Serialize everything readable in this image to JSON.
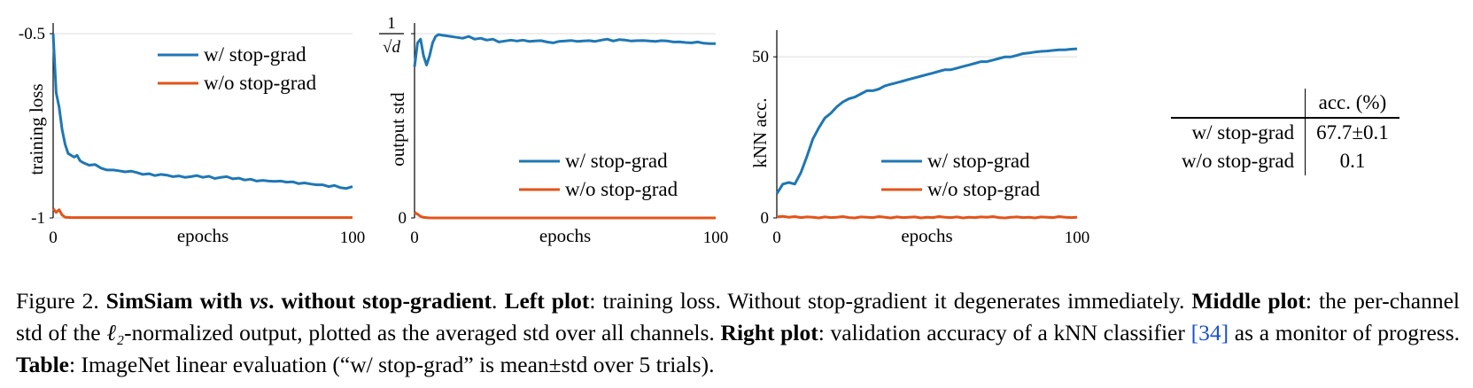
{
  "chart_data": [
    {
      "type": "line",
      "id": "left",
      "title": "",
      "xlabel": "epochs",
      "ylabel": "training loss",
      "xlim": [
        0,
        100
      ],
      "ylim": [
        -1,
        -0.5
      ],
      "xticks": [
        0,
        100
      ],
      "yticks": [
        -1,
        -0.5
      ],
      "ytick_labels": [
        "-1",
        "-0.5"
      ],
      "grid": true,
      "legend_position": "top-right",
      "series": [
        {
          "name": "w/ stop-grad",
          "color": "#1f77b4",
          "x": [
            0,
            1,
            2,
            3,
            4,
            5,
            6,
            7,
            8,
            9,
            10,
            12,
            14,
            16,
            18,
            20,
            22,
            24,
            26,
            28,
            30,
            32,
            34,
            36,
            38,
            40,
            42,
            44,
            46,
            48,
            50,
            52,
            54,
            56,
            58,
            60,
            62,
            64,
            66,
            68,
            70,
            72,
            74,
            76,
            78,
            80,
            82,
            84,
            86,
            88,
            90,
            92,
            94,
            96,
            98,
            100
          ],
          "values": [
            -0.5,
            -0.66,
            -0.7,
            -0.76,
            -0.8,
            -0.825,
            -0.83,
            -0.835,
            -0.83,
            -0.845,
            -0.85,
            -0.857,
            -0.855,
            -0.865,
            -0.87,
            -0.87,
            -0.872,
            -0.875,
            -0.873,
            -0.877,
            -0.882,
            -0.88,
            -0.885,
            -0.882,
            -0.884,
            -0.888,
            -0.886,
            -0.89,
            -0.888,
            -0.885,
            -0.89,
            -0.887,
            -0.893,
            -0.89,
            -0.888,
            -0.894,
            -0.892,
            -0.897,
            -0.895,
            -0.9,
            -0.898,
            -0.9,
            -0.901,
            -0.9,
            -0.903,
            -0.902,
            -0.907,
            -0.905,
            -0.908,
            -0.91,
            -0.91,
            -0.915,
            -0.912,
            -0.918,
            -0.92,
            -0.915
          ]
        },
        {
          "name": "w/o stop-grad",
          "color": "#e2541b",
          "x": [
            0,
            1,
            2,
            3,
            4,
            6,
            10,
            20,
            40,
            60,
            80,
            100
          ],
          "values": [
            -0.975,
            -0.985,
            -0.978,
            -0.992,
            -0.998,
            -0.999,
            -0.999,
            -0.999,
            -0.999,
            -0.999,
            -0.999,
            -0.999
          ]
        }
      ]
    },
    {
      "type": "line",
      "id": "middle",
      "title": "",
      "xlabel": "epochs",
      "ylabel": "output std",
      "xlim": [
        0,
        100
      ],
      "ylim": [
        0,
        1
      ],
      "xticks": [
        0,
        100
      ],
      "yticks": [
        0,
        1
      ],
      "ytick_labels": [
        "0",
        "1/√d"
      ],
      "grid": true,
      "legend_position": "center-right",
      "series": [
        {
          "name": "w/ stop-grad",
          "color": "#1f77b4",
          "x": [
            0,
            1,
            2,
            3,
            4,
            5,
            6,
            7,
            8,
            9,
            10,
            12,
            14,
            16,
            18,
            20,
            22,
            24,
            26,
            28,
            30,
            32,
            34,
            36,
            38,
            40,
            42,
            44,
            46,
            48,
            50,
            52,
            54,
            56,
            58,
            60,
            62,
            64,
            66,
            68,
            70,
            72,
            74,
            76,
            78,
            80,
            82,
            84,
            86,
            88,
            90,
            92,
            94,
            96,
            98,
            100
          ],
          "values": [
            0.82,
            0.95,
            0.97,
            0.88,
            0.83,
            0.88,
            0.95,
            0.985,
            0.995,
            0.992,
            0.99,
            0.985,
            0.98,
            0.975,
            0.985,
            0.97,
            0.975,
            0.965,
            0.97,
            0.955,
            0.96,
            0.965,
            0.96,
            0.965,
            0.958,
            0.96,
            0.962,
            0.955,
            0.95,
            0.958,
            0.96,
            0.963,
            0.958,
            0.96,
            0.962,
            0.958,
            0.965,
            0.97,
            0.96,
            0.968,
            0.965,
            0.96,
            0.962,
            0.963,
            0.96,
            0.958,
            0.962,
            0.96,
            0.955,
            0.956,
            0.952,
            0.95,
            0.955,
            0.948,
            0.946,
            0.946
          ]
        },
        {
          "name": "w/o stop-grad",
          "color": "#e2541b",
          "x": [
            0,
            1,
            2,
            3,
            5,
            10,
            20,
            40,
            60,
            80,
            100
          ],
          "values": [
            0.03,
            0.02,
            0.008,
            0.003,
            0.0,
            0.0,
            0.0,
            0.0,
            0.0,
            0.0,
            0.0
          ]
        }
      ]
    },
    {
      "type": "line",
      "id": "right",
      "title": "",
      "xlabel": "epochs",
      "ylabel": "kNN acc.",
      "xlim": [
        0,
        100
      ],
      "ylim": [
        0,
        55
      ],
      "xticks": [
        0,
        100
      ],
      "yticks": [
        0,
        50
      ],
      "ytick_labels": [
        "0",
        "50"
      ],
      "grid": true,
      "legend_position": "center-right",
      "series": [
        {
          "name": "w/ stop-grad",
          "color": "#1f77b4",
          "x": [
            0,
            2,
            4,
            6,
            8,
            10,
            12,
            14,
            16,
            18,
            20,
            22,
            24,
            26,
            28,
            30,
            32,
            34,
            36,
            38,
            40,
            42,
            44,
            46,
            48,
            50,
            52,
            54,
            56,
            58,
            60,
            62,
            64,
            66,
            68,
            70,
            72,
            74,
            76,
            78,
            80,
            82,
            84,
            86,
            88,
            90,
            92,
            94,
            96,
            98,
            100
          ],
          "values": [
            7.5,
            10.5,
            11,
            10.5,
            14,
            19,
            24.5,
            28,
            31,
            32.5,
            34.5,
            36,
            37,
            37.5,
            38.5,
            39.5,
            39.5,
            40,
            41,
            41.5,
            42,
            42.5,
            43,
            43.5,
            44,
            44.5,
            45,
            45.5,
            46,
            46,
            46.5,
            47,
            47.5,
            48,
            48.5,
            48.5,
            49,
            49.5,
            50,
            50,
            50.5,
            51,
            51.2,
            51.5,
            51.7,
            51.8,
            52,
            52.2,
            52.2,
            52.4,
            52.5
          ]
        },
        {
          "name": "w/o stop-grad",
          "color": "#e2541b",
          "x": [
            0,
            2,
            4,
            6,
            8,
            10,
            12,
            14,
            16,
            18,
            20,
            22,
            24,
            26,
            28,
            30,
            32,
            34,
            36,
            38,
            40,
            42,
            44,
            46,
            48,
            50,
            52,
            54,
            56,
            58,
            60,
            62,
            64,
            66,
            68,
            70,
            72,
            74,
            76,
            78,
            80,
            82,
            84,
            86,
            88,
            90,
            92,
            94,
            96,
            98,
            100
          ],
          "values": [
            0.3,
            0.5,
            0.2,
            0.4,
            0.1,
            0.3,
            0.2,
            0.0,
            0.3,
            0.1,
            0.2,
            0.4,
            0.1,
            0.0,
            0.3,
            0.2,
            0.1,
            0.4,
            0.2,
            0.0,
            0.3,
            0.1,
            0.2,
            0.3,
            0.0,
            0.2,
            0.1,
            0.4,
            0.2,
            0.1,
            0.3,
            0.0,
            0.2,
            0.1,
            0.3,
            0.2,
            0.4,
            0.1,
            0.0,
            0.2,
            0.3,
            0.1,
            0.2,
            0.0,
            0.3,
            0.2,
            0.1,
            0.4,
            0.2,
            0.1,
            0.2
          ]
        }
      ]
    }
  ],
  "table": {
    "header": "acc. (%)",
    "rows": [
      {
        "label": "w/ stop-grad",
        "value": "67.7±0.1"
      },
      {
        "label": "w/o stop-grad",
        "value": "0.1"
      }
    ]
  },
  "caption": {
    "figure_label": "Figure 2.",
    "title_pre": "SimSiam with ",
    "title_vs": "vs",
    "title_post": ". without stop-gradient",
    "left_label": "Left plot",
    "left_text": ": training loss. Without stop-gradient it degenerates immediately.",
    "middle_label": "Middle plot",
    "middle_text_pre": ": the per-channel std of the ",
    "middle_math": "ℓ₂",
    "middle_text_post": "-normalized output, plotted as the averaged std over all channels.",
    "right_label": "Right plot",
    "right_text_pre": ": validation accuracy of a kNN classifier ",
    "citation": "[34]",
    "right_text_post": " as a monitor of progress.",
    "table_label": "Table",
    "table_text": ": ImageNet linear evaluation (“w/ stop-grad” is mean±std over 5 trials)."
  }
}
